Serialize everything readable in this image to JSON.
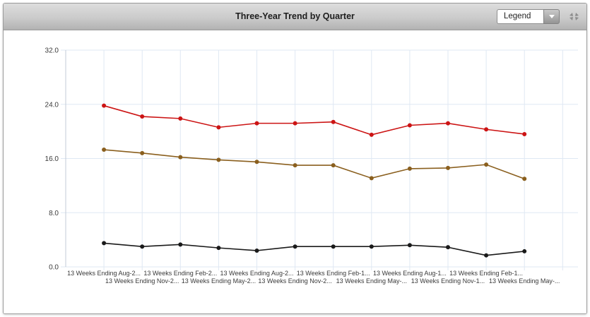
{
  "header": {
    "title": "Three-Year Trend by Quarter",
    "legend_dropdown": {
      "value": "Legend"
    }
  },
  "colors": {
    "grid": "#dfe8f3",
    "axis": "#c3cbd7",
    "tick_label": "#3a3a3a",
    "x_label": "#3a3a3a",
    "icon_gray": "#8d8d8d"
  },
  "chart_data": {
    "type": "line",
    "title": "Three-Year Trend by Quarter",
    "x": [
      "13 Weeks Ending Aug-2...",
      "13 Weeks Ending Nov-2...",
      "13 Weeks Ending Feb-2...",
      "13 Weeks Ending May-2...",
      "13 Weeks Ending Aug-2...",
      "13 Weeks Ending Nov-2...",
      "13 Weeks Ending Feb-1...",
      "13 Weeks Ending May-...",
      "13 Weeks Ending Aug-1...",
      "13 Weeks Ending Nov-1...",
      "13 Weeks Ending Feb-1...",
      "13 Weeks Ending May-..."
    ],
    "series": [
      {
        "name": "red-series",
        "color": "#cc1414",
        "values": [
          23.8,
          22.2,
          21.9,
          20.6,
          21.2,
          21.2,
          21.4,
          19.5,
          20.9,
          21.2,
          20.3,
          19.6
        ]
      },
      {
        "name": "brown-series",
        "color": "#8a5f1e",
        "values": [
          17.3,
          16.8,
          16.2,
          15.8,
          15.5,
          15.0,
          15.0,
          13.1,
          14.5,
          14.6,
          15.1,
          13.0
        ]
      },
      {
        "name": "black-series",
        "color": "#1a1a1a",
        "values": [
          3.5,
          3.0,
          3.3,
          2.8,
          2.4,
          3.0,
          3.0,
          3.0,
          3.2,
          2.9,
          1.7,
          2.3
        ]
      }
    ],
    "ylim": [
      0,
      32
    ],
    "yticks": [
      0,
      8,
      16,
      24,
      32
    ],
    "ytick_labels": [
      "0.0",
      "8.0",
      "16.0",
      "24.0",
      "32.0"
    ],
    "grid": true,
    "legend_position": "collapsed-dropdown"
  }
}
